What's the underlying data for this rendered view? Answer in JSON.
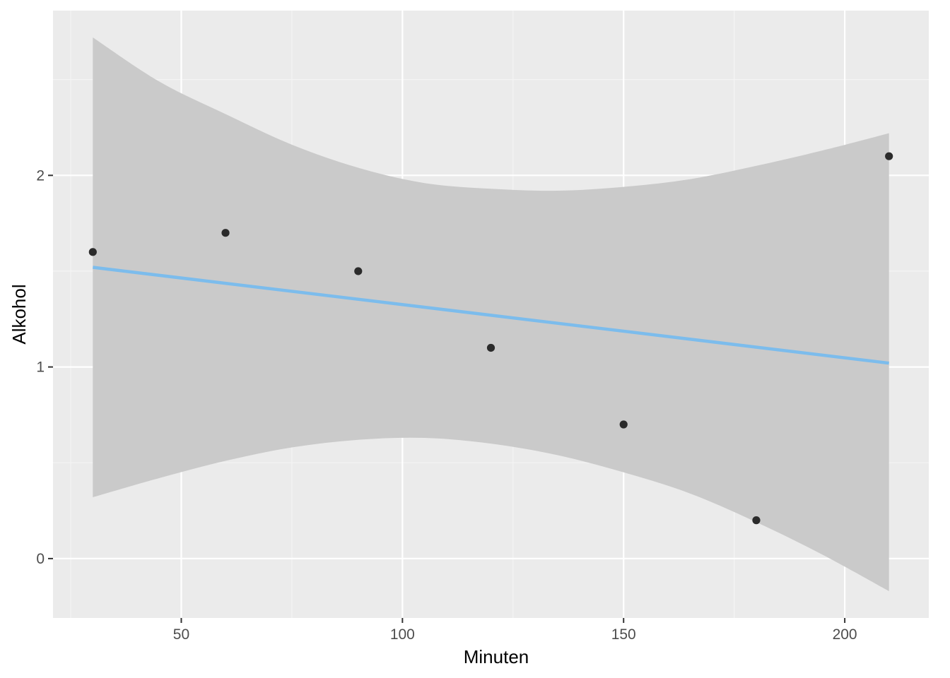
{
  "chart_data": {
    "type": "scatter",
    "xlabel": "Minuten",
    "ylabel": "Alkohol",
    "xlim": [
      21,
      219
    ],
    "ylim": [
      -0.31,
      2.86
    ],
    "x_ticks": [
      50,
      100,
      150,
      200
    ],
    "x_tick_labels": [
      "50",
      "100",
      "150",
      "200"
    ],
    "x_minor_ticks": [
      25,
      75,
      125,
      175
    ],
    "y_ticks": [
      0,
      1,
      2
    ],
    "y_tick_labels": [
      "0",
      "1",
      "2"
    ],
    "y_minor_ticks": [
      0.5,
      1.5,
      2.5
    ],
    "grid": true,
    "points": {
      "x": [
        30,
        60,
        90,
        120,
        150,
        180,
        210
      ],
      "y": [
        1.6,
        1.7,
        1.5,
        1.1,
        0.7,
        0.2,
        2.1
      ]
    },
    "fit_line": {
      "x": [
        30,
        210
      ],
      "y": [
        1.52,
        1.02
      ]
    },
    "confidence_band": {
      "x": [
        30,
        45,
        60,
        75,
        90,
        105,
        120,
        135,
        150,
        165,
        180,
        195,
        210
      ],
      "lower": [
        0.32,
        0.42,
        0.51,
        0.58,
        0.62,
        0.63,
        0.6,
        0.54,
        0.45,
        0.34,
        0.19,
        0.02,
        -0.17
      ],
      "upper": [
        2.72,
        2.49,
        2.32,
        2.16,
        2.04,
        1.96,
        1.93,
        1.92,
        1.94,
        1.98,
        2.05,
        2.13,
        2.22
      ]
    },
    "colors": {
      "panel_background": "#ebebeb",
      "grid_major": "#ffffff",
      "grid_minor": "#f5f5f5",
      "band": "#cacaca",
      "line": "#7cbcec",
      "points": "#2b2b2b",
      "tick_mark": "#333333",
      "tick_label": "#4d4d4d"
    }
  }
}
